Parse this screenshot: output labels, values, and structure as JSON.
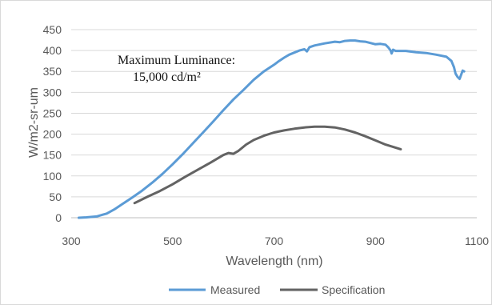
{
  "chart_data": {
    "type": "line",
    "title": "",
    "xlabel": "Wavelength (nm)",
    "ylabel": "W/m2-sr-um",
    "xlim": [
      300,
      1100
    ],
    "ylim": [
      0,
      450
    ],
    "xticks": [
      300,
      500,
      700,
      900,
      1100
    ],
    "yticks": [
      0,
      50,
      100,
      150,
      200,
      250,
      300,
      350,
      400,
      450
    ],
    "grid": "horizontal",
    "legend_position": "bottom",
    "annotation": {
      "line1": "Maximum Luminance:",
      "line2": "15,000 cd/m²"
    },
    "series": [
      {
        "name": "Measured",
        "color": "#5b9bd5",
        "points": [
          [
            315,
            0
          ],
          [
            330,
            1
          ],
          [
            350,
            3
          ],
          [
            370,
            10
          ],
          [
            385,
            20
          ],
          [
            400,
            32
          ],
          [
            420,
            48
          ],
          [
            440,
            65
          ],
          [
            460,
            84
          ],
          [
            480,
            105
          ],
          [
            500,
            128
          ],
          [
            520,
            152
          ],
          [
            540,
            178
          ],
          [
            560,
            204
          ],
          [
            580,
            230
          ],
          [
            600,
            257
          ],
          [
            620,
            283
          ],
          [
            640,
            306
          ],
          [
            660,
            330
          ],
          [
            680,
            350
          ],
          [
            700,
            366
          ],
          [
            710,
            375
          ],
          [
            720,
            383
          ],
          [
            730,
            390
          ],
          [
            740,
            395
          ],
          [
            750,
            400
          ],
          [
            760,
            403
          ],
          [
            765,
            398
          ],
          [
            770,
            408
          ],
          [
            780,
            412
          ],
          [
            800,
            417
          ],
          [
            820,
            421
          ],
          [
            830,
            420
          ],
          [
            840,
            423
          ],
          [
            850,
            424
          ],
          [
            860,
            424
          ],
          [
            870,
            422
          ],
          [
            880,
            421
          ],
          [
            890,
            418
          ],
          [
            900,
            415
          ],
          [
            910,
            416
          ],
          [
            920,
            414
          ],
          [
            925,
            408
          ],
          [
            930,
            400
          ],
          [
            932,
            393
          ],
          [
            935,
            402
          ],
          [
            940,
            399
          ],
          [
            960,
            399
          ],
          [
            980,
            396
          ],
          [
            1000,
            394
          ],
          [
            1020,
            390
          ],
          [
            1040,
            385
          ],
          [
            1050,
            375
          ],
          [
            1055,
            360
          ],
          [
            1058,
            345
          ],
          [
            1062,
            337
          ],
          [
            1066,
            332
          ],
          [
            1070,
            345
          ],
          [
            1072,
            352
          ],
          [
            1075,
            350
          ]
        ]
      },
      {
        "name": "Specification",
        "color": "#636363",
        "points": [
          [
            425,
            35
          ],
          [
            450,
            50
          ],
          [
            475,
            64
          ],
          [
            500,
            80
          ],
          [
            525,
            98
          ],
          [
            550,
            115
          ],
          [
            575,
            132
          ],
          [
            600,
            150
          ],
          [
            610,
            155
          ],
          [
            620,
            153
          ],
          [
            630,
            160
          ],
          [
            645,
            175
          ],
          [
            660,
            186
          ],
          [
            680,
            196
          ],
          [
            700,
            204
          ],
          [
            720,
            209
          ],
          [
            740,
            213
          ],
          [
            760,
            216
          ],
          [
            780,
            218
          ],
          [
            800,
            218
          ],
          [
            820,
            216
          ],
          [
            840,
            211
          ],
          [
            860,
            204
          ],
          [
            880,
            195
          ],
          [
            900,
            185
          ],
          [
            920,
            175
          ],
          [
            950,
            164
          ]
        ]
      }
    ]
  }
}
